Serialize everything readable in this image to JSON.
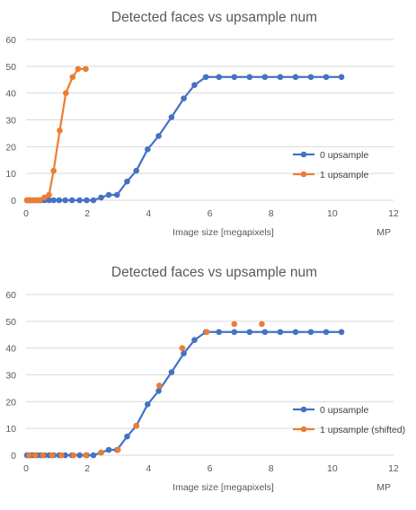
{
  "chart_data": [
    {
      "type": "line",
      "title": "Detected faces vs upsample num",
      "xlabel": "Image size [megapixels]",
      "xunit": "MP",
      "ylabel": "",
      "xlim": [
        0,
        12
      ],
      "ylim": [
        0,
        60
      ],
      "xticks": [
        0,
        2,
        4,
        6,
        8,
        10,
        12
      ],
      "yticks": [
        0,
        10,
        20,
        30,
        40,
        50,
        60
      ],
      "grid": true,
      "legend_position": "right",
      "series": [
        {
          "name": "0 upsample",
          "color": "#4472c4",
          "points": [
            [
              0.03,
              0
            ],
            [
              0.07,
              0
            ],
            [
              0.12,
              0
            ],
            [
              0.19,
              0
            ],
            [
              0.27,
              0
            ],
            [
              0.36,
              0
            ],
            [
              0.48,
              0
            ],
            [
              0.6,
              0
            ],
            [
              0.75,
              0
            ],
            [
              0.9,
              0
            ],
            [
              1.08,
              0
            ],
            [
              1.28,
              0
            ],
            [
              1.5,
              0
            ],
            [
              1.75,
              0
            ],
            [
              1.98,
              0
            ],
            [
              2.2,
              0
            ],
            [
              2.45,
              1
            ],
            [
              2.7,
              2
            ],
            [
              2.97,
              2
            ],
            [
              3.3,
              7
            ],
            [
              3.6,
              11
            ],
            [
              3.97,
              19
            ],
            [
              4.33,
              24
            ],
            [
              4.75,
              31
            ],
            [
              5.15,
              38
            ],
            [
              5.5,
              43
            ],
            [
              5.87,
              46
            ],
            [
              6.3,
              46
            ],
            [
              6.8,
              46
            ],
            [
              7.3,
              46
            ],
            [
              7.8,
              46
            ],
            [
              8.3,
              46
            ],
            [
              8.8,
              46
            ],
            [
              9.3,
              46
            ],
            [
              9.8,
              46
            ],
            [
              10.3,
              46
            ]
          ]
        },
        {
          "name": "1 upsample",
          "color": "#ed7d31",
          "points": [
            [
              0.03,
              0
            ],
            [
              0.08,
              0
            ],
            [
              0.15,
              0
            ],
            [
              0.23,
              0
            ],
            [
              0.33,
              0
            ],
            [
              0.44,
              0
            ],
            [
              0.6,
              1
            ],
            [
              0.75,
              2
            ],
            [
              0.9,
              11
            ],
            [
              1.1,
              26
            ],
            [
              1.3,
              40
            ],
            [
              1.52,
              46
            ],
            [
              1.7,
              49
            ],
            [
              1.95,
              49
            ]
          ]
        }
      ]
    },
    {
      "type": "line",
      "title": "Detected faces vs upsample num",
      "xlabel": "Image size [megapixels]",
      "xunit": "MP",
      "ylabel": "",
      "xlim": [
        0,
        12
      ],
      "ylim": [
        0,
        60
      ],
      "xticks": [
        0,
        2,
        4,
        6,
        8,
        10,
        12
      ],
      "yticks": [
        0,
        10,
        20,
        30,
        40,
        50,
        60
      ],
      "grid": true,
      "legend_position": "right",
      "series": [
        {
          "name": "0 upsample",
          "color": "#4472c4",
          "points": [
            [
              0.03,
              0
            ],
            [
              0.07,
              0
            ],
            [
              0.12,
              0
            ],
            [
              0.19,
              0
            ],
            [
              0.27,
              0
            ],
            [
              0.36,
              0
            ],
            [
              0.48,
              0
            ],
            [
              0.6,
              0
            ],
            [
              0.75,
              0
            ],
            [
              0.9,
              0
            ],
            [
              1.08,
              0
            ],
            [
              1.28,
              0
            ],
            [
              1.5,
              0
            ],
            [
              1.75,
              0
            ],
            [
              1.98,
              0
            ],
            [
              2.2,
              0
            ],
            [
              2.45,
              1
            ],
            [
              2.7,
              2
            ],
            [
              2.97,
              2
            ],
            [
              3.3,
              7
            ],
            [
              3.6,
              11
            ],
            [
              3.97,
              19
            ],
            [
              4.33,
              24
            ],
            [
              4.75,
              31
            ],
            [
              5.15,
              38
            ],
            [
              5.5,
              43
            ],
            [
              5.87,
              46
            ],
            [
              6.3,
              46
            ],
            [
              6.8,
              46
            ],
            [
              7.3,
              46
            ],
            [
              7.8,
              46
            ],
            [
              8.3,
              46
            ],
            [
              8.8,
              46
            ],
            [
              9.3,
              46
            ],
            [
              9.8,
              46
            ],
            [
              10.3,
              46
            ]
          ]
        },
        {
          "name": "1 upsample (shifted)",
          "color": "#ed7d31",
          "markers_only": true,
          "points": [
            [
              0.1,
              0
            ],
            [
              0.3,
              0
            ],
            [
              0.55,
              0
            ],
            [
              0.85,
              0
            ],
            [
              1.15,
              0
            ],
            [
              1.55,
              0
            ],
            [
              1.95,
              0
            ],
            [
              2.45,
              1
            ],
            [
              3.0,
              2
            ],
            [
              3.6,
              11
            ],
            [
              4.35,
              26
            ],
            [
              5.1,
              40
            ],
            [
              5.9,
              46
            ],
            [
              6.8,
              49
            ],
            [
              7.7,
              49
            ]
          ]
        }
      ]
    }
  ]
}
